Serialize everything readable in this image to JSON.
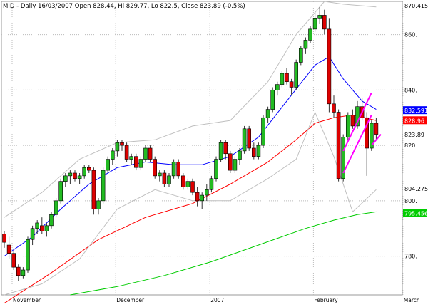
{
  "chart_data": {
    "type": "candlestick",
    "header_label": "MID - Daily 16/03/2007 Open 828.44, Hi 829.77, Lo 822.5, Close 823.89 (-0.5%)",
    "y_axis": {
      "min": 766,
      "max": 872,
      "ticks": [
        780,
        800,
        820,
        840,
        860
      ],
      "tick_labels": [
        "780.",
        "800.",
        "820.",
        "840.",
        "860."
      ]
    },
    "x_axis_labels": [
      {
        "label": "November",
        "index": 0
      },
      {
        "label": "December",
        "index": 22
      },
      {
        "label": "2007",
        "index": 42
      },
      {
        "label": "February",
        "index": 64
      },
      {
        "label": "March",
        "index": 83
      }
    ],
    "price_labels": [
      {
        "value": 870.415,
        "text": "870.415",
        "bg": "#ffffff",
        "fg": "#000000"
      },
      {
        "value": 832.591,
        "text": "832.591",
        "bg": "#0000ff",
        "fg": "#ffffff"
      },
      {
        "value": 828.96,
        "text": "828.96",
        "bg": "#ff0000",
        "fg": "#ffffff"
      },
      {
        "value": 823.89,
        "text": "823.89",
        "bg": "#ffffff",
        "fg": "#000000"
      },
      {
        "value": 804.275,
        "text": "804.275",
        "bg": "#ffffff",
        "fg": "#000000"
      },
      {
        "value": 795.456,
        "text": "795.456",
        "bg": "#00cc00",
        "fg": "#ffffff"
      }
    ],
    "candles": [
      [
        788,
        789,
        783,
        785
      ],
      [
        784,
        787,
        779,
        781
      ],
      [
        781,
        782,
        775,
        776
      ],
      [
        776,
        777,
        771,
        773
      ],
      [
        773,
        776,
        772,
        775
      ],
      [
        775,
        787,
        774,
        786
      ],
      [
        786,
        791,
        784,
        790
      ],
      [
        790,
        793,
        788,
        792
      ],
      [
        791,
        794,
        788,
        789
      ],
      [
        789,
        792,
        787,
        791
      ],
      [
        791,
        796,
        790,
        795
      ],
      [
        795,
        801,
        794,
        800
      ],
      [
        800,
        808,
        799,
        807
      ],
      [
        807,
        810,
        805,
        809
      ],
      [
        809,
        811,
        806,
        810
      ],
      [
        810,
        811,
        807,
        808
      ],
      [
        808,
        810,
        806,
        809
      ],
      [
        809,
        813,
        808,
        812
      ],
      [
        812,
        813,
        810,
        811
      ],
      [
        811,
        812,
        795,
        797
      ],
      [
        797,
        801,
        795,
        800
      ],
      [
        800,
        812,
        799,
        811
      ],
      [
        811,
        816,
        810,
        815
      ],
      [
        815,
        819,
        813,
        818
      ],
      [
        818,
        822,
        816,
        821
      ],
      [
        821,
        822,
        818,
        820
      ],
      [
        820,
        821,
        814,
        815
      ],
      [
        815,
        817,
        813,
        816
      ],
      [
        816,
        817,
        811,
        812
      ],
      [
        812,
        816,
        811,
        815
      ],
      [
        815,
        820,
        814,
        819
      ],
      [
        819,
        820,
        814,
        815
      ],
      [
        815,
        816,
        808,
        809
      ],
      [
        809,
        811,
        807,
        810
      ],
      [
        810,
        811,
        805,
        806
      ],
      [
        806,
        810,
        805,
        809
      ],
      [
        809,
        815,
        808,
        814
      ],
      [
        814,
        815,
        808,
        809
      ],
      [
        809,
        810,
        804,
        805
      ],
      [
        805,
        808,
        804,
        807
      ],
      [
        807,
        808,
        802,
        803
      ],
      [
        803,
        805,
        798,
        800
      ],
      [
        800,
        803,
        797,
        802
      ],
      [
        802,
        806,
        800,
        804
      ],
      [
        804,
        809,
        803,
        808
      ],
      [
        808,
        816,
        807,
        815
      ],
      [
        815,
        822,
        814,
        821
      ],
      [
        821,
        822,
        815,
        817
      ],
      [
        817,
        818,
        810,
        811
      ],
      [
        811,
        816,
        810,
        815
      ],
      [
        815,
        819,
        813,
        818
      ],
      [
        818,
        827,
        817,
        826
      ],
      [
        826,
        827,
        818,
        819
      ],
      [
        819,
        821,
        815,
        816
      ],
      [
        816,
        821,
        815,
        820
      ],
      [
        820,
        831,
        819,
        830
      ],
      [
        830,
        834,
        828,
        833
      ],
      [
        833,
        841,
        832,
        840
      ],
      [
        840,
        843,
        838,
        842
      ],
      [
        842,
        847,
        841,
        846
      ],
      [
        846,
        848,
        842,
        843
      ],
      [
        843,
        844,
        838,
        841
      ],
      [
        841,
        851,
        840,
        850
      ],
      [
        850,
        856,
        849,
        855
      ],
      [
        855,
        859,
        853,
        858
      ],
      [
        858,
        863,
        857,
        862
      ],
      [
        862,
        868,
        861,
        866
      ],
      [
        866,
        870,
        864,
        867
      ],
      [
        867,
        869,
        860,
        862
      ],
      [
        862,
        866,
        832,
        835
      ],
      [
        835,
        838,
        830,
        832
      ],
      [
        832,
        833,
        807,
        808
      ],
      [
        808,
        824,
        807,
        823
      ],
      [
        823,
        832,
        822,
        831
      ],
      [
        831,
        833,
        826,
        827
      ],
      [
        827,
        836,
        826,
        834
      ],
      [
        834,
        837,
        829,
        830
      ],
      [
        830,
        832,
        809,
        819
      ],
      [
        819,
        829,
        818,
        828
      ],
      [
        828,
        830,
        822,
        824
      ]
    ],
    "series": [
      {
        "color": "#0000ff",
        "points": [
          [
            0,
            780
          ],
          [
            6,
            787
          ],
          [
            12,
            797
          ],
          [
            18,
            806
          ],
          [
            24,
            812
          ],
          [
            30,
            814
          ],
          [
            36,
            813
          ],
          [
            42,
            813
          ],
          [
            48,
            816
          ],
          [
            54,
            823
          ],
          [
            60,
            836
          ],
          [
            66,
            849
          ],
          [
            69,
            852
          ],
          [
            72,
            844
          ],
          [
            76,
            836
          ],
          [
            79,
            833
          ]
        ]
      },
      {
        "color": "#ff0000",
        "points": [
          [
            0,
            763
          ],
          [
            10,
            774
          ],
          [
            20,
            786
          ],
          [
            30,
            794
          ],
          [
            40,
            799
          ],
          [
            48,
            806
          ],
          [
            56,
            814
          ],
          [
            62,
            822
          ],
          [
            66,
            828
          ],
          [
            70,
            830
          ],
          [
            74,
            831
          ],
          [
            79,
            829
          ]
        ]
      },
      {
        "color": "#00cc00",
        "points": [
          [
            14,
            766
          ],
          [
            24,
            769
          ],
          [
            34,
            773
          ],
          [
            44,
            778
          ],
          [
            54,
            784
          ],
          [
            64,
            790
          ],
          [
            70,
            793
          ],
          [
            75,
            795
          ],
          [
            79,
            796
          ]
        ]
      },
      {
        "color": "#c0c0c0",
        "points": [
          [
            0,
            794
          ],
          [
            8,
            803
          ],
          [
            16,
            815
          ],
          [
            24,
            821
          ],
          [
            32,
            822
          ],
          [
            40,
            827
          ],
          [
            48,
            829
          ],
          [
            56,
            843
          ],
          [
            62,
            860
          ],
          [
            68,
            872
          ],
          [
            72,
            871
          ],
          [
            79,
            870
          ]
        ]
      },
      {
        "color": "#c0c0c0",
        "points": [
          [
            0,
            766
          ],
          [
            8,
            770
          ],
          [
            16,
            779
          ],
          [
            24,
            797
          ],
          [
            32,
            804
          ],
          [
            40,
            800
          ],
          [
            48,
            800
          ],
          [
            56,
            808
          ],
          [
            62,
            815
          ],
          [
            66,
            832
          ],
          [
            70,
            816
          ],
          [
            74,
            796
          ],
          [
            79,
            804
          ]
        ]
      },
      {
        "color": "#ff00ff",
        "points": [
          [
            72,
            818
          ],
          [
            78,
            839
          ]
        ]
      },
      {
        "color": "#ff00ff",
        "points": [
          [
            72,
            810
          ],
          [
            78,
            831
          ]
        ]
      },
      {
        "color": "#ff00ff",
        "points": [
          [
            78,
            820
          ],
          [
            80,
            824
          ]
        ]
      }
    ]
  }
}
